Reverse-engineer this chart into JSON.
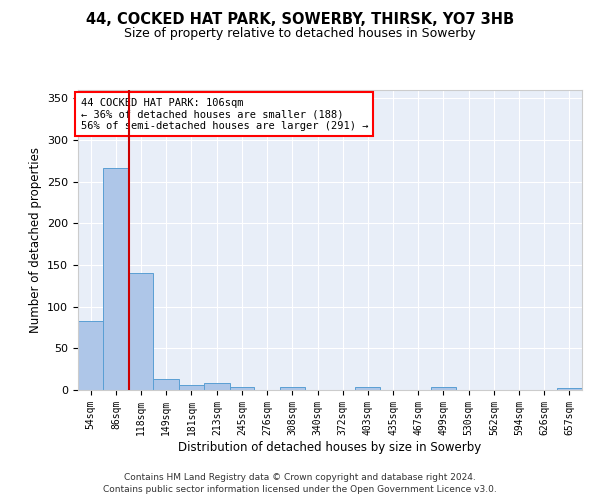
{
  "title1": "44, COCKED HAT PARK, SOWERBY, THIRSK, YO7 3HB",
  "title2": "Size of property relative to detached houses in Sowerby",
  "xlabel": "Distribution of detached houses by size in Sowerby",
  "ylabel": "Number of detached properties",
  "footer1": "Contains HM Land Registry data © Crown copyright and database right 2024.",
  "footer2": "Contains public sector information licensed under the Open Government Licence v3.0.",
  "annotation_line1": "44 COCKED HAT PARK: 106sqm",
  "annotation_line2": "← 36% of detached houses are smaller (188)",
  "annotation_line3": "56% of semi-detached houses are larger (291) →",
  "bar_edges": [
    54,
    86,
    118,
    149,
    181,
    213,
    245,
    276,
    308,
    340,
    372,
    403,
    435,
    467,
    499,
    530,
    562,
    594,
    626,
    657,
    689
  ],
  "bar_heights": [
    83,
    266,
    141,
    13,
    6,
    9,
    4,
    0,
    4,
    0,
    0,
    4,
    0,
    0,
    4,
    0,
    0,
    0,
    0,
    3
  ],
  "bar_color": "#aec6e8",
  "bar_edge_color": "#5a9fd4",
  "red_line_x": 118,
  "ylim": [
    0,
    360
  ],
  "yticks": [
    0,
    50,
    100,
    150,
    200,
    250,
    300,
    350
  ],
  "background_color": "#e8eef8",
  "annotation_box_color": "white",
  "annotation_box_edge": "red",
  "red_line_color": "#cc0000",
  "fig_background": "#ffffff"
}
